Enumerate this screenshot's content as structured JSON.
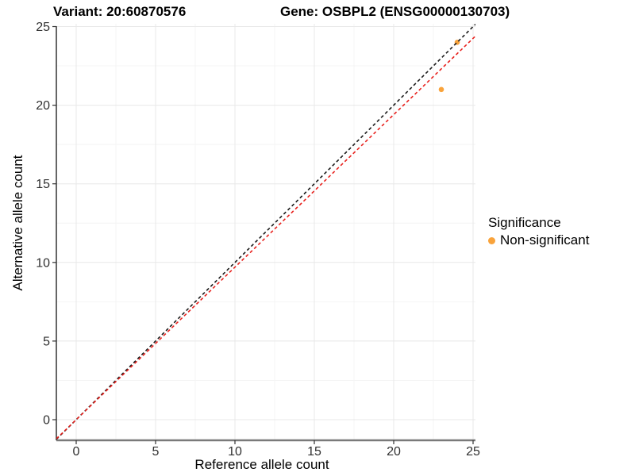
{
  "header": {
    "title_left": "Variant: 20:60870576",
    "title_right": "Gene: OSBPL2 (ENSG00000130703)"
  },
  "chart_data": {
    "type": "scatter",
    "title": "Variant: 20:60870576 — Gene: OSBPL2 (ENSG00000130703)",
    "xlabel": "Reference allele count",
    "ylabel": "Alternative allele count",
    "xlim": [
      -1.25,
      25.15
    ],
    "ylim": [
      -1.3,
      25.1
    ],
    "xticks": [
      0,
      5,
      10,
      15,
      20,
      25
    ],
    "yticks": [
      0,
      5,
      10,
      15,
      20,
      25
    ],
    "grid": "major+minor",
    "legend": {
      "title": "Significance",
      "position": "right-middle",
      "entries": [
        {
          "label": "Non-significant",
          "color": "#F9A33B"
        }
      ]
    },
    "series": [
      {
        "name": "Non-significant",
        "marker": "circle",
        "color": "#F9A33B",
        "points": [
          {
            "x": 24,
            "y": 24
          },
          {
            "x": 23,
            "y": 21
          }
        ]
      }
    ],
    "reference_lines": [
      {
        "name": "identity-line",
        "slope": 1.0,
        "intercept": 0,
        "style": "dashed",
        "color": "#1A1A1A"
      },
      {
        "name": "expected-ratio-line",
        "slope": 0.97,
        "intercept": 0,
        "style": "dashed",
        "color": "#E8211D"
      }
    ],
    "colors": {
      "background": "#FFFFFF",
      "grid_major": "#E8E8E8",
      "grid_minor": "#F4F4F4",
      "axis_left": "#333333",
      "axis_bottom": "#7A7A7A",
      "tick_mark": "#333333",
      "tick_text": "#303030",
      "point": "#F9A33B"
    }
  }
}
